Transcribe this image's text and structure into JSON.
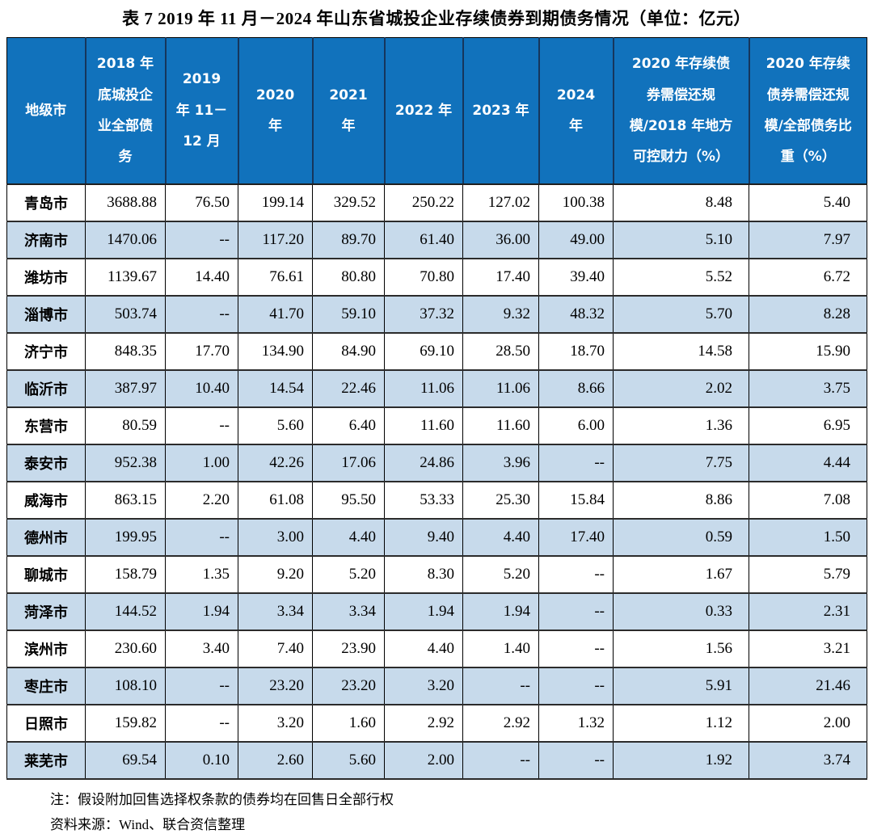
{
  "title": "表 7  2019 年 11 月－2024 年山东省城投企业存续债券到期债务情况（单位：亿元）",
  "table": {
    "column_headers": [
      "地级市",
      "2018 年底城投企业全部债务",
      "2019 年 11－12 月",
      "2020 年",
      "2021 年",
      "2022 年",
      "2023 年",
      "2024 年",
      "2020 年存续债券需偿还规模/2018 年地方可控财力（%）",
      "2020 年存续债券需偿还规模/全部债务比重（%）"
    ],
    "rows": [
      {
        "city": "青岛市",
        "values": [
          "3688.88",
          "76.50",
          "199.14",
          "329.52",
          "250.22",
          "127.02",
          "100.38",
          "8.48",
          "5.40"
        ]
      },
      {
        "city": "济南市",
        "values": [
          "1470.06",
          "--",
          "117.20",
          "89.70",
          "61.40",
          "36.00",
          "49.00",
          "5.10",
          "7.97"
        ]
      },
      {
        "city": "潍坊市",
        "values": [
          "1139.67",
          "14.40",
          "76.61",
          "80.80",
          "70.80",
          "17.40",
          "39.40",
          "5.52",
          "6.72"
        ]
      },
      {
        "city": "淄博市",
        "values": [
          "503.74",
          "--",
          "41.70",
          "59.10",
          "37.32",
          "9.32",
          "48.32",
          "5.70",
          "8.28"
        ]
      },
      {
        "city": "济宁市",
        "values": [
          "848.35",
          "17.70",
          "134.90",
          "84.90",
          "69.10",
          "28.50",
          "18.70",
          "14.58",
          "15.90"
        ]
      },
      {
        "city": "临沂市",
        "values": [
          "387.97",
          "10.40",
          "14.54",
          "22.46",
          "11.06",
          "11.06",
          "8.66",
          "2.02",
          "3.75"
        ]
      },
      {
        "city": "东营市",
        "values": [
          "80.59",
          "--",
          "5.60",
          "6.40",
          "11.60",
          "11.60",
          "6.00",
          "1.36",
          "6.95"
        ]
      },
      {
        "city": "泰安市",
        "values": [
          "952.38",
          "1.00",
          "42.26",
          "17.06",
          "24.86",
          "3.96",
          "--",
          "7.75",
          "4.44"
        ]
      },
      {
        "city": "威海市",
        "values": [
          "863.15",
          "2.20",
          "61.08",
          "95.50",
          "53.33",
          "25.30",
          "15.84",
          "8.86",
          "7.08"
        ]
      },
      {
        "city": "德州市",
        "values": [
          "199.95",
          "--",
          "3.00",
          "4.40",
          "9.40",
          "4.40",
          "17.40",
          "0.59",
          "1.50"
        ]
      },
      {
        "city": "聊城市",
        "values": [
          "158.79",
          "1.35",
          "9.20",
          "5.20",
          "8.30",
          "5.20",
          "--",
          "1.67",
          "5.79"
        ]
      },
      {
        "city": "菏泽市",
        "values": [
          "144.52",
          "1.94",
          "3.34",
          "3.34",
          "1.94",
          "1.94",
          "--",
          "0.33",
          "2.31"
        ]
      },
      {
        "city": "滨州市",
        "values": [
          "230.60",
          "3.40",
          "7.40",
          "23.90",
          "4.40",
          "1.40",
          "--",
          "1.56",
          "3.21"
        ]
      },
      {
        "city": "枣庄市",
        "values": [
          "108.10",
          "--",
          "23.20",
          "23.20",
          "3.20",
          "--",
          "--",
          "5.91",
          "21.46"
        ]
      },
      {
        "city": "日照市",
        "values": [
          "159.82",
          "--",
          "3.20",
          "1.60",
          "2.92",
          "2.92",
          "1.32",
          "1.12",
          "2.00"
        ]
      },
      {
        "city": "莱芜市",
        "values": [
          "69.54",
          "0.10",
          "2.60",
          "5.60",
          "2.00",
          "--",
          "--",
          "1.92",
          "3.74"
        ]
      }
    ]
  },
  "notes": {
    "assumption": "注：假设附加回售选择权条款的债券均在回售日全部行权",
    "source": "资料来源：Wind、联合资信整理"
  },
  "colors": {
    "header_bg": "#1172BC",
    "header_text": "#FFFFFF",
    "header_divider": "#16365C",
    "alt_row_bg": "#C7DAEB",
    "row_border": "#2B2B2B"
  }
}
